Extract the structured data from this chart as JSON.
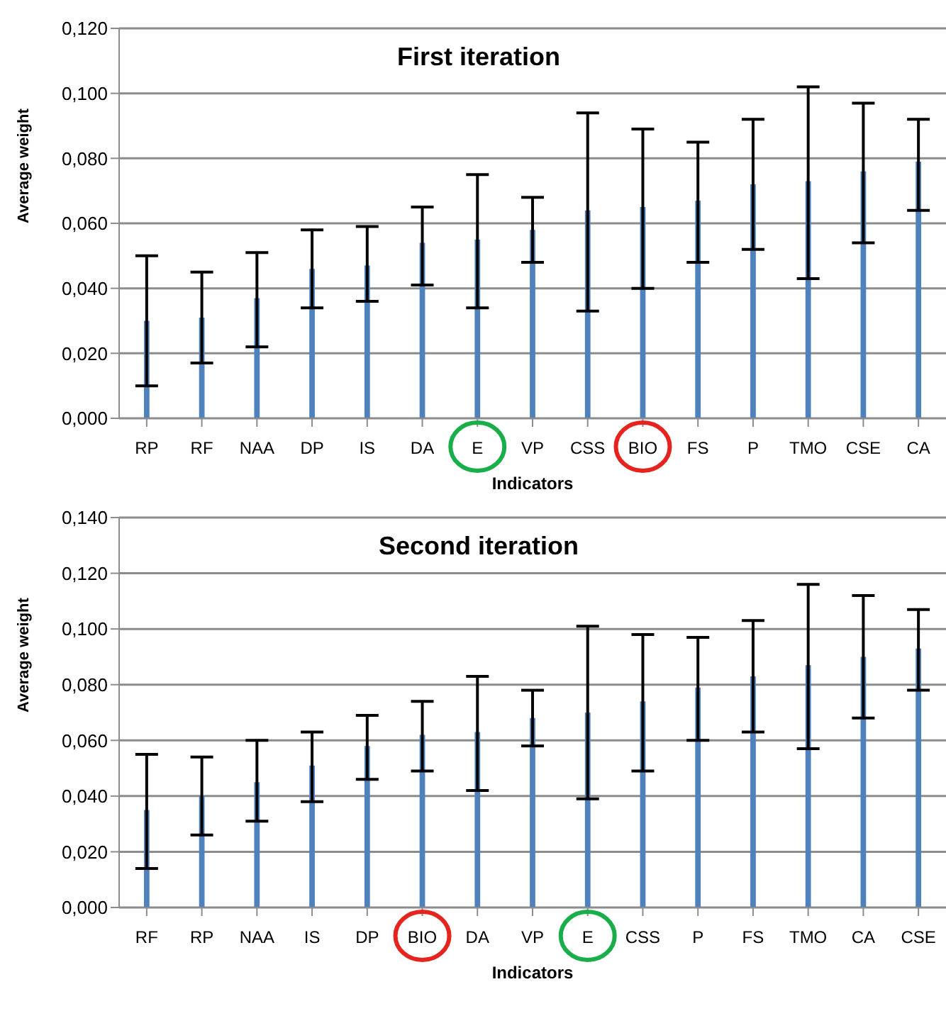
{
  "chart_data": [
    {
      "type": "bar",
      "title": "First iteration",
      "xlabel": "Indicators",
      "ylabel": "Average weight",
      "categories": [
        "RP",
        "RF",
        "NAA",
        "DP",
        "IS",
        "DA",
        "E",
        "VP",
        "CSS",
        "BIO",
        "FS",
        "P",
        "TMO",
        "CSE",
        "CA"
      ],
      "series": [
        {
          "color": "#4f81bd",
          "values": [
            0.03,
            0.031,
            0.037,
            0.046,
            0.047,
            0.054,
            0.055,
            0.058,
            0.064,
            0.065,
            0.067,
            0.072,
            0.073,
            0.076,
            0.079
          ],
          "errors": [
            [
              0.01,
              0.05
            ],
            [
              0.017,
              0.045
            ],
            [
              0.022,
              0.051
            ],
            [
              0.034,
              0.058
            ],
            [
              0.036,
              0.059
            ],
            [
              0.041,
              0.065
            ],
            [
              0.034,
              0.075
            ],
            [
              0.048,
              0.068
            ],
            [
              0.033,
              0.094
            ],
            [
              0.04,
              0.089
            ],
            [
              0.048,
              0.085
            ],
            [
              0.052,
              0.092
            ],
            [
              0.043,
              0.102
            ],
            [
              0.054,
              0.097
            ],
            [
              0.064,
              0.092
            ]
          ]
        }
      ],
      "ylim": [
        0,
        0.12
      ],
      "yticks": [
        {
          "value": 0,
          "label": "0,000"
        },
        {
          "value": 0.02,
          "label": "0,020"
        },
        {
          "value": 0.04,
          "label": "0,040"
        },
        {
          "value": 0.06,
          "label": "0,060"
        },
        {
          "value": 0.08,
          "label": "0,080"
        },
        {
          "value": 0.1,
          "label": "0,100"
        },
        {
          "value": 0.12,
          "label": "0,120"
        }
      ],
      "grid": "y",
      "legend": false
    },
    {
      "type": "bar",
      "title": "Second iteration",
      "xlabel": "Indicators",
      "ylabel": "Average weight",
      "categories": [
        "RF",
        "RP",
        "NAA",
        "IS",
        "DP",
        "BIO",
        "DA",
        "VP",
        "E",
        "CSS",
        "P",
        "FS",
        "TMO",
        "CA",
        "CSE"
      ],
      "series": [
        {
          "color": "#4f81bd",
          "values": [
            0.035,
            0.04,
            0.045,
            0.051,
            0.058,
            0.062,
            0.063,
            0.068,
            0.07,
            0.074,
            0.079,
            0.083,
            0.087,
            0.09,
            0.093
          ],
          "errors": [
            [
              0.014,
              0.055
            ],
            [
              0.026,
              0.054
            ],
            [
              0.031,
              0.06
            ],
            [
              0.038,
              0.063
            ],
            [
              0.046,
              0.069
            ],
            [
              0.049,
              0.074
            ],
            [
              0.042,
              0.083
            ],
            [
              0.058,
              0.078
            ],
            [
              0.039,
              0.101
            ],
            [
              0.049,
              0.098
            ],
            [
              0.06,
              0.097
            ],
            [
              0.063,
              0.103
            ],
            [
              0.057,
              0.116
            ],
            [
              0.068,
              0.112
            ],
            [
              0.078,
              0.107
            ]
          ]
        }
      ],
      "ylim": [
        0,
        0.14
      ],
      "yticks": [
        {
          "value": 0,
          "label": "0,000"
        },
        {
          "value": 0.02,
          "label": "0,020"
        },
        {
          "value": 0.04,
          "label": "0,040"
        },
        {
          "value": 0.06,
          "label": "0,060"
        },
        {
          "value": 0.08,
          "label": "0,080"
        },
        {
          "value": 0.1,
          "label": "0,100"
        },
        {
          "value": 0.12,
          "label": "0,120"
        },
        {
          "value": 0.14,
          "label": "0,140"
        }
      ],
      "grid": "y",
      "legend": false
    }
  ]
}
